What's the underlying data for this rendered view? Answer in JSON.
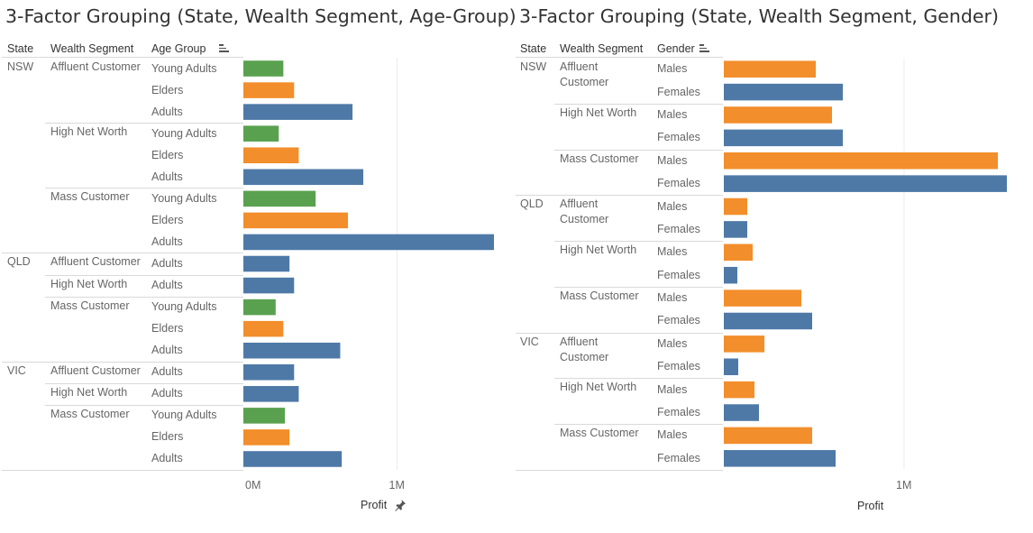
{
  "colors": {
    "green": "#59a14f",
    "orange": "#f28e2b",
    "blue": "#4e79a7"
  },
  "left": {
    "title": "3-Factor Grouping (State, Wealth Segment, Age-Group)",
    "headers": {
      "state": "State",
      "segment": "Wealth Segment",
      "group": "Age Group"
    },
    "sort_icon": "sort-descending-icon",
    "pin_icon": "pin-icon",
    "axis": {
      "ticks": [
        "0M",
        "1M"
      ],
      "title": "Profit"
    }
  },
  "right": {
    "title": "3-Factor Grouping (State, Wealth Segment, Gender)",
    "headers": {
      "state": "State",
      "segment": "Wealth Segment",
      "group": "Gender"
    },
    "sort_icon": "sort-descending-icon",
    "axis": {
      "ticks": [
        "1M"
      ],
      "title": "Profit"
    }
  },
  "chart_data": [
    {
      "type": "bar",
      "orientation": "horizontal",
      "title": "3-Factor Grouping (State, Wealth Segment, Age-Group)",
      "xlabel": "Profit",
      "xlim": [
        0,
        1630000
      ],
      "xticks": [
        "0M",
        "1M"
      ],
      "grid": true,
      "rows": [
        {
          "state": "NSW",
          "segment": "Affluent Customer",
          "group": "Young Adults",
          "value": 260000,
          "color": "green"
        },
        {
          "state": "NSW",
          "segment": "Affluent Customer",
          "group": "Elders",
          "value": 330000,
          "color": "orange"
        },
        {
          "state": "NSW",
          "segment": "Affluent Customer",
          "group": "Adults",
          "value": 710000,
          "color": "blue"
        },
        {
          "state": "NSW",
          "segment": "High Net Worth",
          "group": "Young Adults",
          "value": 230000,
          "color": "green"
        },
        {
          "state": "NSW",
          "segment": "High Net Worth",
          "group": "Elders",
          "value": 360000,
          "color": "orange"
        },
        {
          "state": "NSW",
          "segment": "High Net Worth",
          "group": "Adults",
          "value": 780000,
          "color": "blue"
        },
        {
          "state": "NSW",
          "segment": "Mass Customer",
          "group": "Young Adults",
          "value": 470000,
          "color": "green"
        },
        {
          "state": "NSW",
          "segment": "Mass Customer",
          "group": "Elders",
          "value": 680000,
          "color": "orange"
        },
        {
          "state": "NSW",
          "segment": "Mass Customer",
          "group": "Adults",
          "value": 1630000,
          "color": "blue"
        },
        {
          "state": "QLD",
          "segment": "Affluent Customer",
          "group": "Adults",
          "value": 300000,
          "color": "blue"
        },
        {
          "state": "QLD",
          "segment": "High Net Worth",
          "group": "Adults",
          "value": 330000,
          "color": "blue"
        },
        {
          "state": "QLD",
          "segment": "Mass Customer",
          "group": "Young Adults",
          "value": 210000,
          "color": "green"
        },
        {
          "state": "QLD",
          "segment": "Mass Customer",
          "group": "Elders",
          "value": 260000,
          "color": "orange"
        },
        {
          "state": "QLD",
          "segment": "Mass Customer",
          "group": "Adults",
          "value": 630000,
          "color": "blue"
        },
        {
          "state": "VIC",
          "segment": "Affluent Customer",
          "group": "Adults",
          "value": 330000,
          "color": "blue"
        },
        {
          "state": "VIC",
          "segment": "High Net Worth",
          "group": "Adults",
          "value": 360000,
          "color": "blue"
        },
        {
          "state": "VIC",
          "segment": "Mass Customer",
          "group": "Young Adults",
          "value": 270000,
          "color": "green"
        },
        {
          "state": "VIC",
          "segment": "Mass Customer",
          "group": "Elders",
          "value": 300000,
          "color": "orange"
        },
        {
          "state": "VIC",
          "segment": "Mass Customer",
          "group": "Adults",
          "value": 640000,
          "color": "blue"
        }
      ]
    },
    {
      "type": "bar",
      "orientation": "horizontal",
      "title": "3-Factor Grouping (State, Wealth Segment, Gender)",
      "xlabel": "Profit",
      "xlim": [
        0,
        1570000
      ],
      "xticks": [
        "1M"
      ],
      "grid": true,
      "rows": [
        {
          "state": "NSW",
          "segment": "Affluent Customer",
          "group": "Males",
          "value": 510000,
          "color": "orange"
        },
        {
          "state": "NSW",
          "segment": "Affluent Customer",
          "group": "Females",
          "value": 660000,
          "color": "blue"
        },
        {
          "state": "NSW",
          "segment": "High Net Worth",
          "group": "Males",
          "value": 600000,
          "color": "orange"
        },
        {
          "state": "NSW",
          "segment": "High Net Worth",
          "group": "Females",
          "value": 660000,
          "color": "blue"
        },
        {
          "state": "NSW",
          "segment": "Mass Customer",
          "group": "Males",
          "value": 1520000,
          "color": "orange"
        },
        {
          "state": "NSW",
          "segment": "Mass Customer",
          "group": "Females",
          "value": 1570000,
          "color": "blue"
        },
        {
          "state": "QLD",
          "segment": "Affluent Customer",
          "group": "Males",
          "value": 130000,
          "color": "orange"
        },
        {
          "state": "QLD",
          "segment": "Affluent Customer",
          "group": "Females",
          "value": 130000,
          "color": "blue"
        },
        {
          "state": "QLD",
          "segment": "High Net Worth",
          "group": "Males",
          "value": 160000,
          "color": "orange"
        },
        {
          "state": "QLD",
          "segment": "High Net Worth",
          "group": "Females",
          "value": 75000,
          "color": "blue"
        },
        {
          "state": "QLD",
          "segment": "Mass Customer",
          "group": "Males",
          "value": 430000,
          "color": "orange"
        },
        {
          "state": "QLD",
          "segment": "Mass Customer",
          "group": "Females",
          "value": 490000,
          "color": "blue"
        },
        {
          "state": "VIC",
          "segment": "Affluent Customer",
          "group": "Males",
          "value": 225000,
          "color": "orange"
        },
        {
          "state": "VIC",
          "segment": "Affluent Customer",
          "group": "Females",
          "value": 80000,
          "color": "blue"
        },
        {
          "state": "VIC",
          "segment": "High Net Worth",
          "group": "Males",
          "value": 170000,
          "color": "orange"
        },
        {
          "state": "VIC",
          "segment": "High Net Worth",
          "group": "Females",
          "value": 195000,
          "color": "blue"
        },
        {
          "state": "VIC",
          "segment": "Mass Customer",
          "group": "Males",
          "value": 490000,
          "color": "orange"
        },
        {
          "state": "VIC",
          "segment": "Mass Customer",
          "group": "Females",
          "value": 620000,
          "color": "blue"
        }
      ]
    }
  ]
}
